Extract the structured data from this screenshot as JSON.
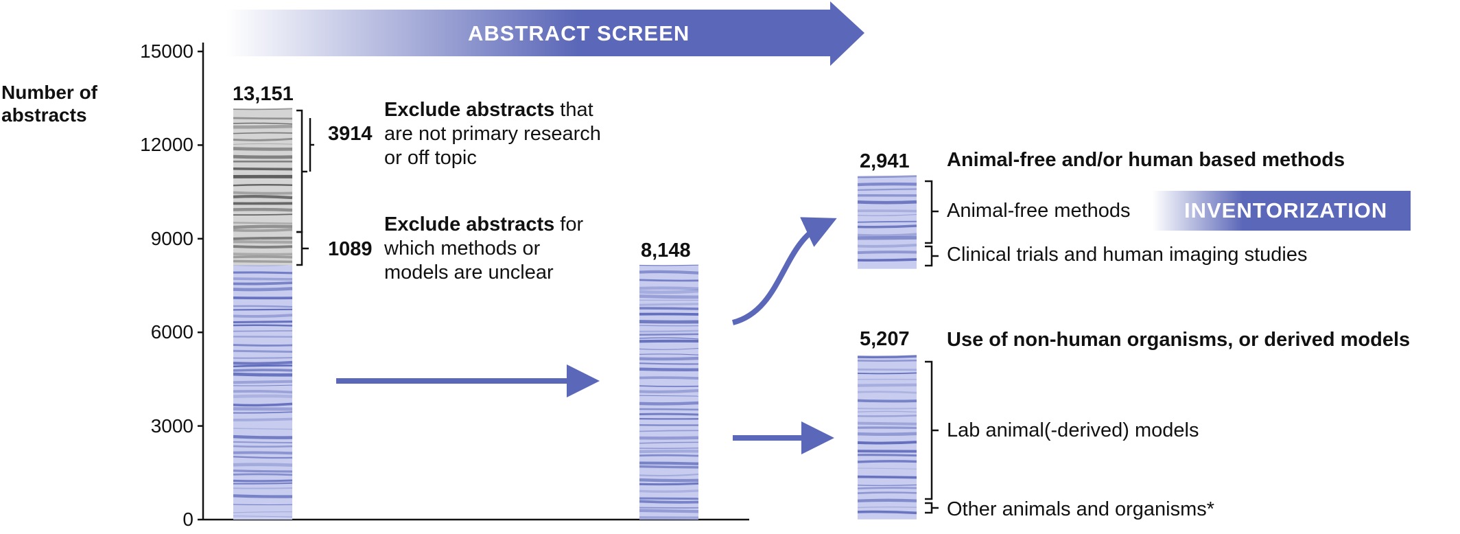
{
  "chart_data": {
    "type": "bar",
    "y_axis": {
      "label": "Number of abstracts",
      "ticks": [
        0,
        3000,
        6000,
        9000,
        12000,
        15000
      ],
      "ylim": [
        0,
        15000
      ]
    },
    "phases": {
      "screen": "ABSTRACT SCREEN",
      "inventory": "INVENTORIZATION"
    },
    "stacks": [
      {
        "id": "total",
        "count_label": "13,151",
        "value": 13151,
        "segments": [
          {
            "value": 8148,
            "kind": "included"
          },
          {
            "value": 1089,
            "kind": "excluded"
          },
          {
            "value": 3914,
            "kind": "excluded"
          }
        ]
      },
      {
        "id": "screened",
        "count_label": "8,148",
        "value": 8148
      },
      {
        "id": "animal_free",
        "count_label": "2,941",
        "value": 2941
      },
      {
        "id": "non_human",
        "count_label": "5,207",
        "value": 5207
      }
    ],
    "exclusions": [
      {
        "number": "3914",
        "bold": "Exclude abstracts",
        "rest": " that are not primary research or off topic"
      },
      {
        "number": "1089",
        "bold": "Exclude abstracts",
        "rest": " for which methods or models are unclear"
      }
    ],
    "groups": [
      {
        "heading": "Animal-free and/or human based methods",
        "items": [
          "Animal-free methods",
          "Clinical trials and human imaging studies"
        ]
      },
      {
        "heading": "Use of non-human organisms, or derived models",
        "items": [
          "Lab animal(-derived) models",
          "Other animals and organisms*"
        ]
      }
    ]
  },
  "colors": {
    "blue": "#5b67b8",
    "band_light": "#c8cdef",
    "grey_light": "#d4d4d4",
    "axis": "#111111"
  }
}
